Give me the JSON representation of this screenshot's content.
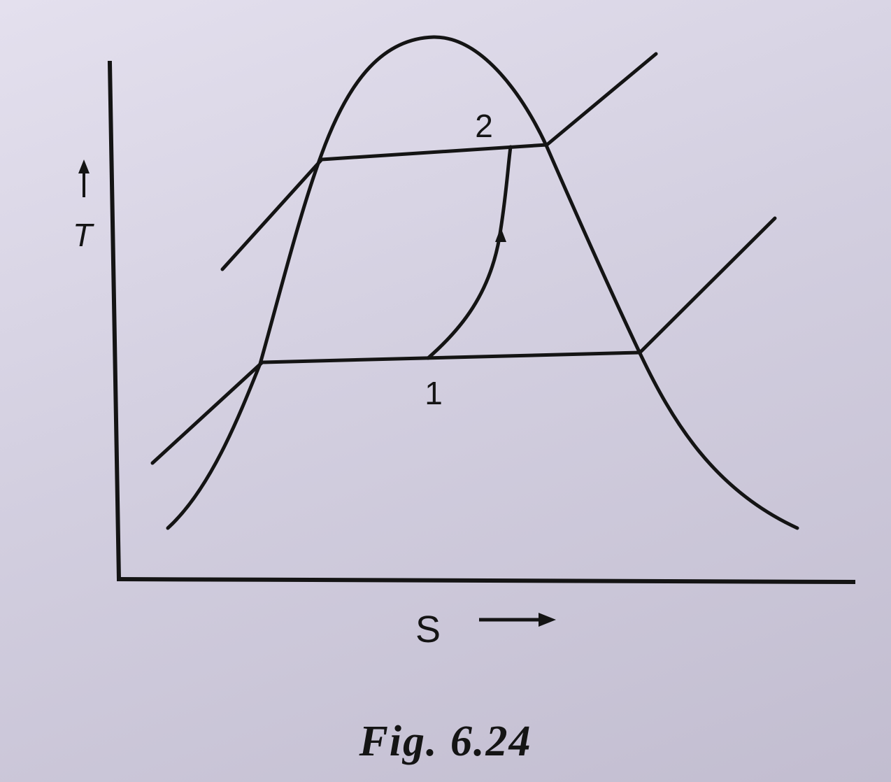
{
  "diagram": {
    "y_axis_label": "T",
    "x_axis_label": "S",
    "points": {
      "state_1": "1",
      "state_2": "2"
    }
  },
  "caption": "Fig. 6.24"
}
